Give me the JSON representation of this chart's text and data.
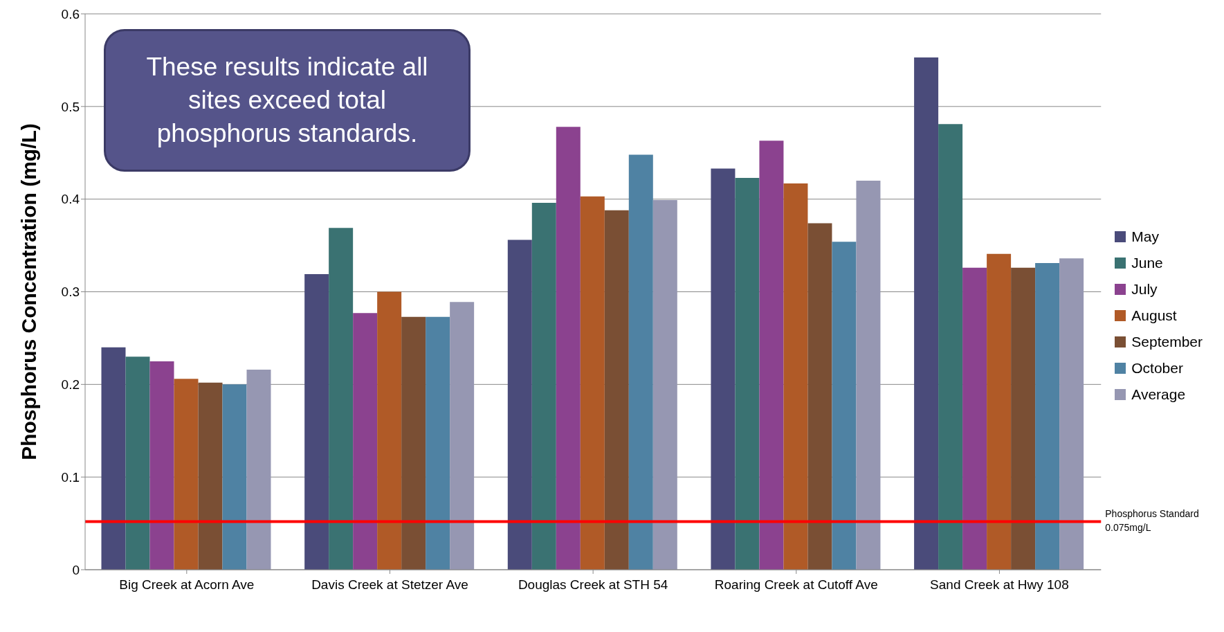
{
  "chart_data": {
    "type": "bar",
    "ylabel": "Phosphorus Concentration (mg/L)",
    "categories": [
      "Big Creek at Acorn Ave",
      "Davis Creek at Stetzer Ave",
      "Douglas Creek at STH 54",
      "Roaring Creek at Cutoff Ave",
      "Sand Creek at Hwy 108"
    ],
    "series": [
      {
        "name": "May",
        "color": "#4a4b7a",
        "values": [
          0.24,
          0.319,
          0.356,
          0.433,
          0.553
        ]
      },
      {
        "name": "June",
        "color": "#3a7272",
        "values": [
          0.23,
          0.369,
          0.396,
          0.423,
          0.481
        ]
      },
      {
        "name": "July",
        "color": "#8b428f",
        "values": [
          0.225,
          0.277,
          0.478,
          0.463,
          0.326
        ]
      },
      {
        "name": "August",
        "color": "#b05a27",
        "values": [
          0.206,
          0.3,
          0.403,
          0.417,
          0.341
        ]
      },
      {
        "name": "September",
        "color": "#7a4f34",
        "values": [
          0.202,
          0.273,
          0.388,
          0.374,
          0.326
        ]
      },
      {
        "name": "October",
        "color": "#4f82a3",
        "values": [
          0.2,
          0.273,
          0.448,
          0.354,
          0.331
        ]
      },
      {
        "name": "Average",
        "color": "#9697b2",
        "values": [
          0.216,
          0.289,
          0.399,
          0.42,
          0.336
        ]
      }
    ],
    "ylim": [
      0,
      0.6
    ],
    "yticks": [
      0,
      0.1,
      0.2,
      0.3,
      0.4,
      0.5,
      0.6
    ],
    "grid": "y",
    "legend": "right",
    "ref_lines": [
      {
        "axis": "y",
        "value": 0.052,
        "label": "Phosphorus Standard 0.075mg/L",
        "color": "#ff0000"
      }
    ],
    "annotations": [
      "These results indicate all sites exceed total phosphorus standards."
    ]
  }
}
